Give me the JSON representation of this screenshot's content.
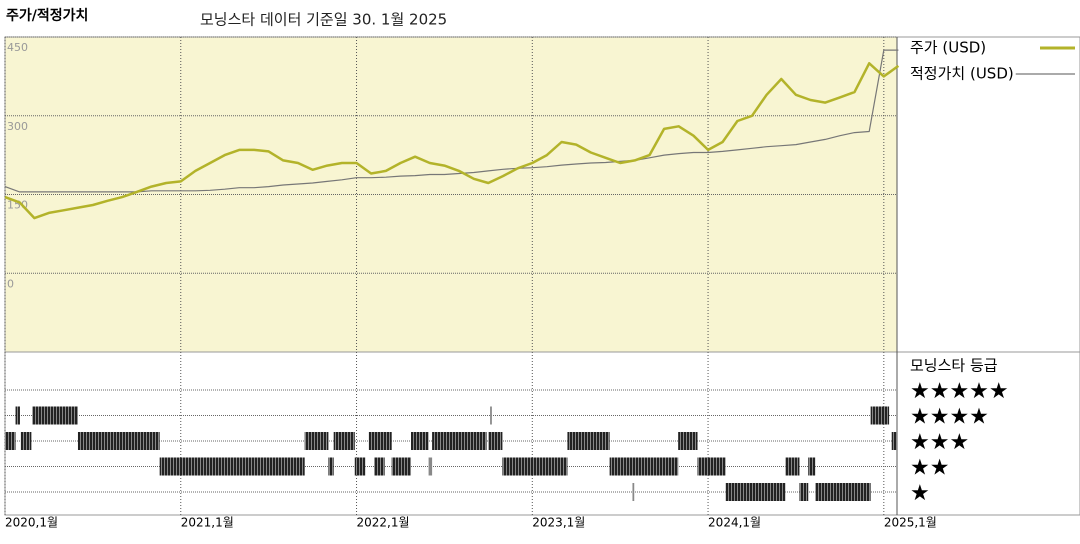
{
  "chart_data": {
    "type": "line",
    "title": "주가/적정가치",
    "subtitle": "모닝스타 데이터 기준일 30. 1월 2025",
    "x": [
      2020.0,
      2020.083,
      2020.167,
      2020.25,
      2020.333,
      2020.417,
      2020.5,
      2020.583,
      2020.667,
      2020.75,
      2020.833,
      2020.917,
      2021.0,
      2021.083,
      2021.167,
      2021.25,
      2021.333,
      2021.417,
      2021.5,
      2021.583,
      2021.667,
      2021.75,
      2021.833,
      2021.917,
      2022.0,
      2022.083,
      2022.167,
      2022.25,
      2022.333,
      2022.417,
      2022.5,
      2022.583,
      2022.667,
      2022.75,
      2022.833,
      2022.917,
      2023.0,
      2023.083,
      2023.167,
      2023.25,
      2023.333,
      2023.417,
      2023.5,
      2023.583,
      2023.667,
      2023.75,
      2023.833,
      2023.917,
      2024.0,
      2024.083,
      2024.167,
      2024.25,
      2024.333,
      2024.417,
      2024.5,
      2024.583,
      2024.667,
      2024.75,
      2024.833,
      2024.917,
      2025.0,
      2025.083
    ],
    "series": [
      {
        "name": "주가 (USD)",
        "color": "#b3b32a",
        "values": [
          145,
          135,
          105,
          115,
          120,
          125,
          130,
          138,
          145,
          155,
          165,
          172,
          175,
          195,
          210,
          225,
          235,
          235,
          232,
          215,
          210,
          197,
          205,
          210,
          210,
          190,
          195,
          210,
          222,
          210,
          205,
          195,
          180,
          172,
          185,
          200,
          210,
          225,
          250,
          245,
          230,
          220,
          210,
          215,
          225,
          275,
          280,
          262,
          235,
          250,
          290,
          300,
          340,
          370,
          340,
          330,
          325,
          335,
          345,
          400,
          375,
          395
        ]
      },
      {
        "name": "적정가치 (USD)",
        "color": "#777777",
        "values": [
          165,
          155,
          155,
          155,
          155,
          155,
          155,
          155,
          155,
          155,
          157,
          157,
          157,
          157,
          158,
          160,
          163,
          163,
          165,
          168,
          170,
          172,
          175,
          178,
          182,
          182,
          183,
          185,
          186,
          188,
          188,
          190,
          192,
          195,
          198,
          200,
          201,
          203,
          206,
          208,
          210,
          211,
          213,
          215,
          220,
          225,
          228,
          230,
          230,
          232,
          235,
          238,
          241,
          243,
          245,
          250,
          255,
          262,
          268,
          270,
          425,
          425
        ]
      }
    ],
    "xlim": [
      2020.0,
      2025.075
    ],
    "xticks": [
      {
        "value": 2020.0,
        "label": "2020,1월"
      },
      {
        "value": 2021.0,
        "label": "2021,1월"
      },
      {
        "value": 2022.0,
        "label": "2022,1월"
      },
      {
        "value": 2023.0,
        "label": "2023,1월"
      },
      {
        "value": 2024.0,
        "label": "2024,1월"
      },
      {
        "value": 2025.0,
        "label": "2025,1월"
      }
    ],
    "ylim": [
      -150,
      450
    ],
    "yticks": [
      0,
      150,
      300,
      450
    ],
    "grid": true,
    "legend": "right",
    "rating": {
      "title": "모닝스타 등급",
      "levels": [
        {
          "value": 5,
          "label": "★★★★★"
        },
        {
          "value": 4,
          "label": "★★★★"
        },
        {
          "value": 3,
          "label": "★★★"
        },
        {
          "value": 2,
          "label": "★★"
        },
        {
          "value": 1,
          "label": "★"
        }
      ],
      "periods": [
        {
          "start": 2020.06,
          "end": 2020.085,
          "stars": 4
        },
        {
          "start": 2020.155,
          "end": 2020.415,
          "stars": 4
        },
        {
          "start": 2022.76,
          "end": 2022.77,
          "stars": 4
        },
        {
          "start": 2024.925,
          "end": 2025.03,
          "stars": 4
        },
        {
          "start": 2020.0,
          "end": 2020.06,
          "stars": 3
        },
        {
          "start": 2020.09,
          "end": 2020.15,
          "stars": 3
        },
        {
          "start": 2020.415,
          "end": 2020.88,
          "stars": 3
        },
        {
          "start": 2021.705,
          "end": 2021.84,
          "stars": 3
        },
        {
          "start": 2021.87,
          "end": 2021.99,
          "stars": 3
        },
        {
          "start": 2022.07,
          "end": 2022.2,
          "stars": 3
        },
        {
          "start": 2022.31,
          "end": 2022.41,
          "stars": 3
        },
        {
          "start": 2022.43,
          "end": 2022.74,
          "stars": 3
        },
        {
          "start": 2022.75,
          "end": 2022.83,
          "stars": 3
        },
        {
          "start": 2023.2,
          "end": 2023.44,
          "stars": 3
        },
        {
          "start": 2023.83,
          "end": 2023.94,
          "stars": 3
        },
        {
          "start": 2025.045,
          "end": 2025.075,
          "stars": 3
        },
        {
          "start": 2020.88,
          "end": 2021.705,
          "stars": 2
        },
        {
          "start": 2021.84,
          "end": 2021.87,
          "stars": 2
        },
        {
          "start": 2021.99,
          "end": 2022.05,
          "stars": 2
        },
        {
          "start": 2022.1,
          "end": 2022.16,
          "stars": 2
        },
        {
          "start": 2022.2,
          "end": 2022.31,
          "stars": 2
        },
        {
          "start": 2022.41,
          "end": 2022.43,
          "stars": 2
        },
        {
          "start": 2022.83,
          "end": 2023.2,
          "stars": 2
        },
        {
          "start": 2023.44,
          "end": 2023.83,
          "stars": 2
        },
        {
          "start": 2023.94,
          "end": 2024.1,
          "stars": 2
        },
        {
          "start": 2024.44,
          "end": 2024.52,
          "stars": 2
        },
        {
          "start": 2024.57,
          "end": 2024.61,
          "stars": 2
        },
        {
          "start": 2023.57,
          "end": 2023.58,
          "stars": 1
        },
        {
          "start": 2024.1,
          "end": 2024.44,
          "stars": 1
        },
        {
          "start": 2024.52,
          "end": 2024.57,
          "stars": 1
        },
        {
          "start": 2024.61,
          "end": 2024.925,
          "stars": 1
        }
      ]
    }
  }
}
